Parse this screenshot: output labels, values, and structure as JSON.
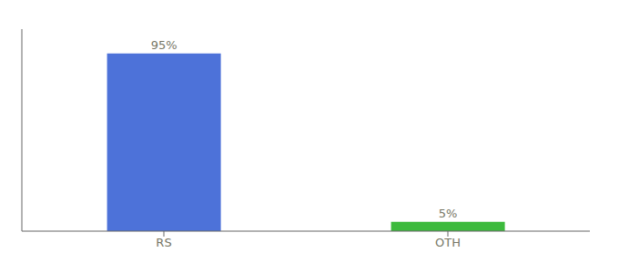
{
  "chart_data": {
    "type": "bar",
    "categories": [
      "RS",
      "OTH"
    ],
    "values": [
      95,
      5
    ],
    "value_labels": [
      "95%",
      "5%"
    ],
    "colors": [
      "#4d72d9",
      "#3dba3d"
    ],
    "ylim": [
      0,
      108
    ],
    "data_labels": true,
    "tick_labels": "x",
    "grid": false
  }
}
